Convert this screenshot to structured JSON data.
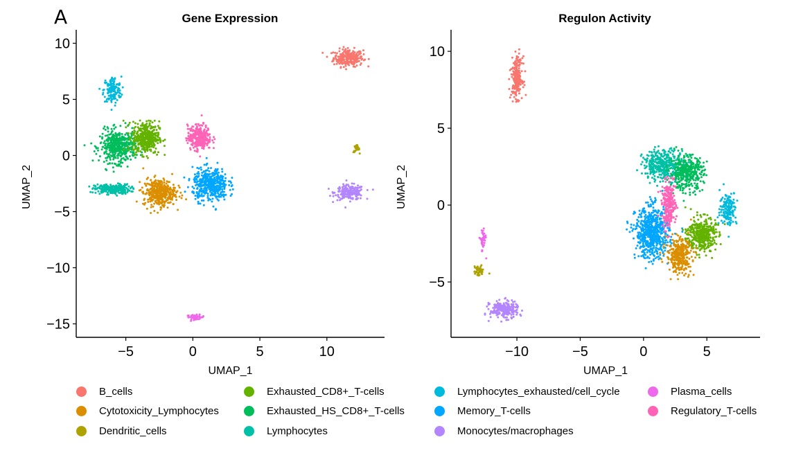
{
  "panel_label": "A",
  "chart_data": [
    {
      "type": "scatter",
      "title": "Gene Expression",
      "xlabel": "UMAP_1",
      "ylabel": "UMAP_2",
      "xlim": [
        -8.7,
        14.3
      ],
      "ylim": [
        -16.2,
        11.2
      ],
      "xticks": [
        -5,
        0,
        5,
        10
      ],
      "yticks": [
        -15,
        -10,
        -5,
        0,
        5,
        10
      ],
      "grid": false,
      "clusters": [
        {
          "name": "B_cells",
          "center": [
            11.6,
            8.7
          ],
          "spread": [
            1.0,
            0.7
          ],
          "n": 260
        },
        {
          "name": "Plasma_cells",
          "center": [
            0.2,
            -14.4
          ],
          "spread": [
            0.6,
            0.18
          ],
          "n": 50
        },
        {
          "name": "Dendritic_cells",
          "center": [
            12.2,
            0.6
          ],
          "spread": [
            0.2,
            0.3
          ],
          "n": 25
        },
        {
          "name": "Monocytes/macrophages",
          "center": [
            11.7,
            -3.3
          ],
          "spread": [
            1.0,
            0.6
          ],
          "n": 220
        },
        {
          "name": "Lymphocytes_exhausted/cell_cycle",
          "center": [
            -6.0,
            5.8
          ],
          "spread": [
            0.6,
            1.1
          ],
          "n": 150
        },
        {
          "name": "Lymphocytes",
          "center": [
            -6.0,
            -3.0
          ],
          "spread": [
            1.2,
            0.4
          ],
          "n": 240
        },
        {
          "name": "Exhausted_HS_CD8+_T-cells",
          "center": [
            -5.6,
            0.8
          ],
          "spread": [
            1.2,
            1.3
          ],
          "n": 450
        },
        {
          "name": "Exhausted_CD8+_T-cells",
          "center": [
            -3.5,
            1.6
          ],
          "spread": [
            0.9,
            1.3
          ],
          "n": 420
        },
        {
          "name": "Cytotoxicity_Lymphocytes",
          "center": [
            -2.5,
            -3.3
          ],
          "spread": [
            1.1,
            1.1
          ],
          "n": 400
        },
        {
          "name": "Regulatory_T-cells",
          "center": [
            0.5,
            1.6
          ],
          "spread": [
            0.8,
            1.0
          ],
          "n": 320
        },
        {
          "name": "Memory_T-cells",
          "center": [
            1.3,
            -2.6
          ],
          "spread": [
            1.2,
            1.3
          ],
          "n": 450
        }
      ]
    },
    {
      "type": "scatter",
      "title": "Regulon Activity",
      "xlabel": "UMAP_1",
      "ylabel": "UMAP_2",
      "xlim": [
        -15.2,
        9.2
      ],
      "ylim": [
        -8.6,
        11.4
      ],
      "xticks": [
        -10,
        -5,
        0,
        5
      ],
      "yticks": [
        -5,
        0,
        5,
        10
      ],
      "grid": false,
      "clusters": [
        {
          "name": "B_cells",
          "center": [
            -10.0,
            8.3
          ],
          "spread": [
            0.4,
            1.2
          ],
          "n": 220
        },
        {
          "name": "Plasma_cells",
          "center": [
            -12.7,
            -2.3
          ],
          "spread": [
            0.2,
            0.7
          ],
          "n": 45
        },
        {
          "name": "Dendritic_cells",
          "center": [
            -13.0,
            -4.3
          ],
          "spread": [
            0.35,
            0.3
          ],
          "n": 45
        },
        {
          "name": "Monocytes/macrophages",
          "center": [
            -11.0,
            -6.8
          ],
          "spread": [
            1.0,
            0.5
          ],
          "n": 250
        },
        {
          "name": "Lymphocytes",
          "center": [
            1.6,
            2.6
          ],
          "spread": [
            1.5,
            0.9
          ],
          "n": 380
        },
        {
          "name": "Exhausted_HS_CD8+_T-cells",
          "center": [
            3.4,
            2.1
          ],
          "spread": [
            1.2,
            1.0
          ],
          "n": 380
        },
        {
          "name": "Lymphocytes_exhausted/cell_cycle",
          "center": [
            6.7,
            -0.2
          ],
          "spread": [
            0.6,
            1.0
          ],
          "n": 160
        },
        {
          "name": "Memory_T-cells",
          "center": [
            0.7,
            -1.8
          ],
          "spread": [
            1.2,
            1.5
          ],
          "n": 650
        },
        {
          "name": "Regulatory_T-cells",
          "center": [
            2.0,
            0.0
          ],
          "spread": [
            0.5,
            1.3
          ],
          "n": 260
        },
        {
          "name": "Exhausted_CD8+_T-cells",
          "center": [
            4.6,
            -1.9
          ],
          "spread": [
            1.0,
            1.0
          ],
          "n": 400
        },
        {
          "name": "Cytotoxicity_Lymphocytes",
          "center": [
            2.8,
            -3.3
          ],
          "spread": [
            0.9,
            1.0
          ],
          "n": 340
        }
      ]
    }
  ],
  "legend": [
    {
      "label": "B_cells",
      "color": "#F8766D"
    },
    {
      "label": "Cytotoxicity_Lymphocytes",
      "color": "#DB8E00"
    },
    {
      "label": "Dendritic_cells",
      "color": "#AEA200"
    },
    {
      "label": "Exhausted_CD8+_T-cells",
      "color": "#64B200"
    },
    {
      "label": "Exhausted_HS_CD8+_T-cells",
      "color": "#00BD5C"
    },
    {
      "label": "Lymphocytes",
      "color": "#00C1A7"
    },
    {
      "label": "Lymphocytes_exhausted/cell_cycle",
      "color": "#00BADE"
    },
    {
      "label": "Memory_T-cells",
      "color": "#00A6FF"
    },
    {
      "label": "Monocytes/macrophages",
      "color": "#B385FF"
    },
    {
      "label": "Plasma_cells",
      "color": "#EF67EB"
    },
    {
      "label": "Regulatory_T-cells",
      "color": "#FF63B6"
    }
  ]
}
